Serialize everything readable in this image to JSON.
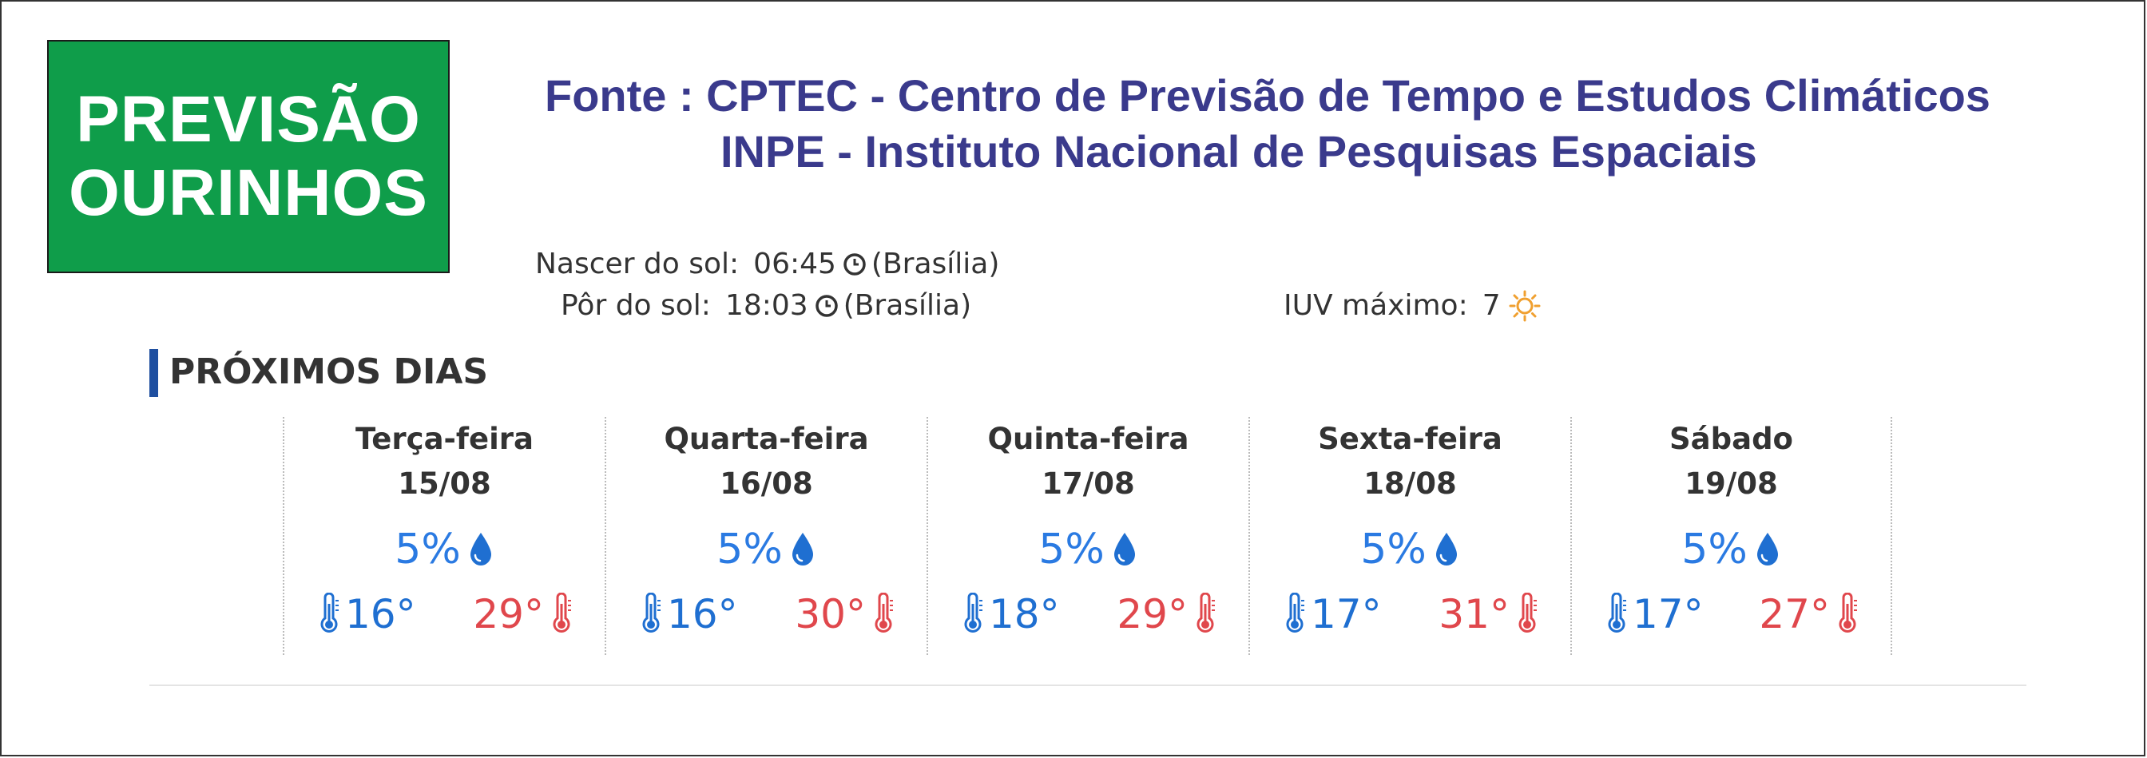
{
  "badge": {
    "line1": "PREVISÃO",
    "line2": "OURINHOS"
  },
  "source": {
    "line1": "Fonte : CPTEC - Centro de Previsão de Tempo e  Estudos Climáticos",
    "line2": "INPE   -  Instituto Nacional de Pesquisas Espaciais"
  },
  "sun": {
    "sunrise_label": "Nascer do sol:",
    "sunrise_time": "06:45",
    "sunrise_tz": "(Brasília)",
    "sunset_label": "Pôr do sol:",
    "sunset_time": "18:03",
    "sunset_tz": "(Brasília)",
    "uv_label": "IUV máximo:",
    "uv_value": "7"
  },
  "section_title": "PRÓXIMOS DIAS",
  "days": [
    {
      "name": "Terça-feira",
      "date": "15/08",
      "rain": "5%",
      "min": "16°",
      "max": "29°"
    },
    {
      "name": "Quarta-feira",
      "date": "16/08",
      "rain": "5%",
      "min": "16°",
      "max": "30°"
    },
    {
      "name": "Quinta-feira",
      "date": "17/08",
      "rain": "5%",
      "min": "18°",
      "max": "29°"
    },
    {
      "name": "Sexta-feira",
      "date": "18/08",
      "rain": "5%",
      "min": "17°",
      "max": "31°"
    },
    {
      "name": "Sábado",
      "date": "19/08",
      "rain": "5%",
      "min": "17°",
      "max": "27°"
    }
  ],
  "colors": {
    "badge_green": "#0f9d4a",
    "source_text": "#3a3a8c",
    "section_bar": "#1f4fa0",
    "rain_blue": "#2a7ae2",
    "min_blue": "#1f6fd1",
    "max_red": "#e0474c",
    "uv_orange": "#f0a030"
  },
  "icons": {
    "clock": "clock-icon",
    "uv": "sun-icon",
    "rain": "raindrop-icon",
    "min": "thermometer-cold-icon",
    "max": "thermometer-hot-icon"
  }
}
